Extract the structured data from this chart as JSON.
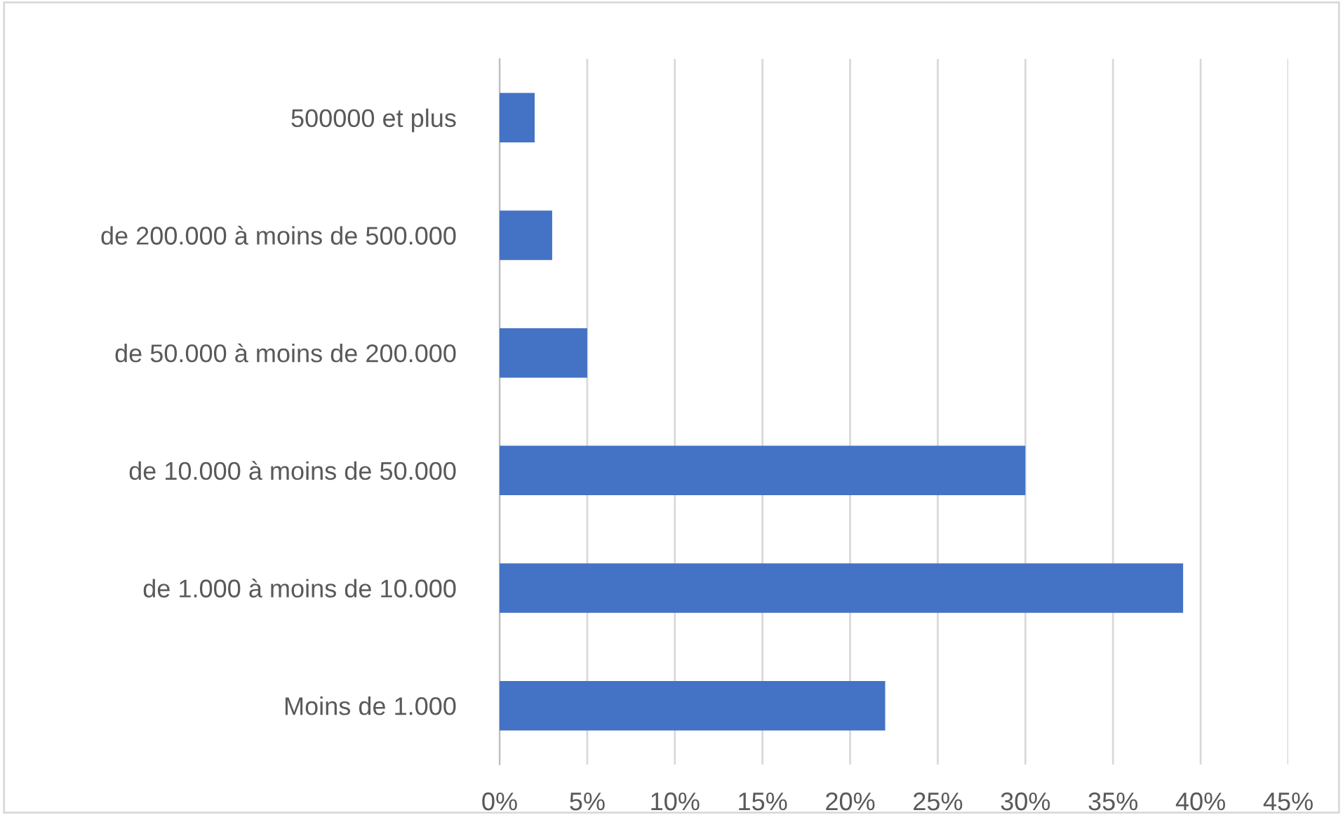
{
  "chart_data": {
    "type": "bar",
    "orientation": "horizontal",
    "categories": [
      "500000 et plus",
      "de 200.000 à moins de 500.000",
      "de 50.000 à moins de 200.000",
      "de 10.000 à moins de 50.000",
      "de 1.000 à moins de 10.000",
      "Moins de 1.000"
    ],
    "values": [
      2,
      3,
      5,
      30,
      39,
      22
    ],
    "color": "#4472c4",
    "xlim": [
      0,
      45
    ],
    "xticks": [
      {
        "value": 0,
        "label": "0%"
      },
      {
        "value": 5,
        "label": "5%"
      },
      {
        "value": 10,
        "label": "10%"
      },
      {
        "value": 15,
        "label": "15%"
      },
      {
        "value": 20,
        "label": "20%"
      },
      {
        "value": 25,
        "label": "25%"
      },
      {
        "value": 30,
        "label": "30%"
      },
      {
        "value": 35,
        "label": "35%"
      },
      {
        "value": 40,
        "label": "40%"
      },
      {
        "value": 45,
        "label": "45%"
      }
    ],
    "grid": "x"
  }
}
